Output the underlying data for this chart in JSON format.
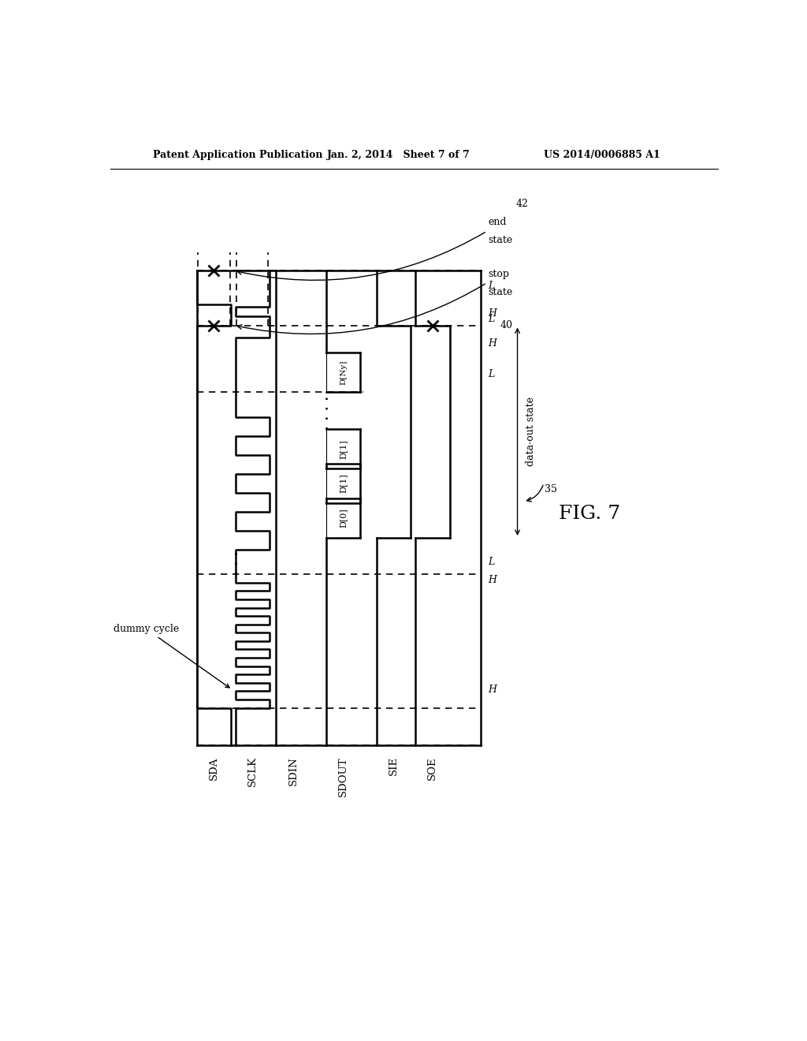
{
  "title_left": "Patent Application Publication",
  "title_center": "Jan. 2, 2014   Sheet 7 of 7",
  "title_right": "US 2014/0006885 A1",
  "fig_label": "FIG. 7",
  "signal_names": [
    "SDA",
    "SCLK",
    "SDIN",
    "SDOUT",
    "SIE",
    "SOE"
  ],
  "background_color": "#ffffff",
  "line_color": "#000000",
  "dummy_cycle_label": "dummy cycle",
  "data_out_state_label": "data-out state",
  "stop_state_label": "stop\nstate",
  "end_state_label": "end\nstate",
  "label_35": "35",
  "label_40": "40",
  "label_42": "42",
  "sdout_labels": [
    "D[0]",
    "D[1]",
    "D[1]",
    "D[Ny]"
  ]
}
